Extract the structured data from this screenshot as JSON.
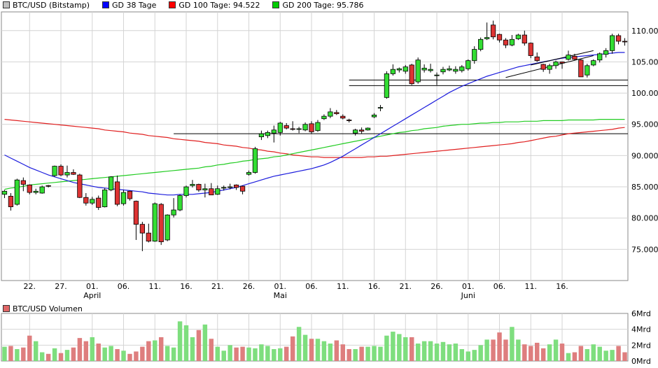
{
  "legend": {
    "items": [
      {
        "label": "BTC/USD (Bitstamp)",
        "color": "#bfbfbf"
      },
      {
        "label": "GD 38 Tage",
        "color": "#0000ff"
      },
      {
        "label": "GD 100 Tage: 94.522",
        "color": "#ff0000"
      },
      {
        "label": "GD 200 Tage: 95.786",
        "color": "#00cc00"
      }
    ]
  },
  "volume_legend": {
    "label": "BTC/USD Volumen",
    "color": "#e06666"
  },
  "chart_data": [
    {
      "type": "candlestick",
      "title": "",
      "ylim": [
        70000,
        113000
      ],
      "y_ticks": [
        75000,
        80000,
        85000,
        90000,
        95000,
        100000,
        105000,
        110000
      ],
      "y_tick_labels": [
        "75.000",
        "80.000",
        "85.000",
        "90.000",
        "95.000",
        "100.000",
        "105.000",
        "110.000"
      ],
      "x_ticks": [
        {
          "day": 4,
          "label": "22."
        },
        {
          "day": 9,
          "label": "27."
        },
        {
          "day": 14,
          "label": "01."
        },
        {
          "day": 19,
          "label": "06."
        },
        {
          "day": 24,
          "label": "11."
        },
        {
          "day": 29,
          "label": "16."
        },
        {
          "day": 34,
          "label": "21."
        },
        {
          "day": 39,
          "label": "26."
        },
        {
          "day": 44,
          "label": "01."
        },
        {
          "day": 49,
          "label": "06."
        },
        {
          "day": 54,
          "label": "11."
        },
        {
          "day": 59,
          "label": "16."
        },
        {
          "day": 64,
          "label": "21."
        },
        {
          "day": 69,
          "label": "26."
        },
        {
          "day": 74,
          "label": "01."
        },
        {
          "day": 79,
          "label": "06."
        },
        {
          "day": 84,
          "label": "11."
        },
        {
          "day": 89,
          "label": "16."
        }
      ],
      "month_labels": [
        {
          "day": 14,
          "label": "April"
        },
        {
          "day": 44,
          "label": "Mai"
        },
        {
          "day": 74,
          "label": "Juni"
        }
      ],
      "ohlc": [
        [
          83800,
          84500,
          83200,
          84300
        ],
        [
          83500,
          84000,
          81200,
          81800
        ],
        [
          82200,
          86300,
          82000,
          86100
        ],
        [
          86000,
          86500,
          84300,
          85400
        ],
        [
          85300,
          85400,
          83800,
          84100
        ],
        [
          84100,
          84700,
          83800,
          84300
        ],
        [
          84000,
          85200,
          83900,
          85000
        ],
        [
          85200,
          85300,
          84900,
          85100
        ],
        [
          86800,
          88400,
          86600,
          88300
        ],
        [
          88300,
          88600,
          86700,
          86900
        ],
        [
          86900,
          88400,
          86500,
          87300
        ],
        [
          87300,
          87800,
          86900,
          87000
        ],
        [
          86900,
          87100,
          83200,
          83300
        ],
        [
          83300,
          84000,
          82000,
          82400
        ],
        [
          82400,
          83400,
          82100,
          83000
        ],
        [
          83200,
          83600,
          81300,
          81700
        ],
        [
          81800,
          84800,
          81700,
          84500
        ],
        [
          84500,
          86700,
          84300,
          86600
        ],
        [
          85800,
          86800,
          81900,
          82200
        ],
        [
          82300,
          84500,
          82000,
          84100
        ],
        [
          84300,
          84400,
          82800,
          83100
        ],
        [
          82700,
          82800,
          76500,
          79000
        ],
        [
          79000,
          79400,
          74700,
          77600
        ],
        [
          77600,
          79100,
          76100,
          76300
        ],
        [
          76300,
          82500,
          76200,
          82300
        ],
        [
          82200,
          82400,
          75700,
          76200
        ],
        [
          76500,
          80600,
          76300,
          80500
        ],
        [
          80500,
          83200,
          80100,
          81300
        ],
        [
          81300,
          83800,
          81100,
          83600
        ],
        [
          83600,
          85200,
          83300,
          85000
        ],
        [
          85200,
          86100,
          84900,
          85400
        ],
        [
          85400,
          85500,
          84200,
          84500
        ],
        [
          84500,
          85500,
          83300,
          84700
        ],
        [
          84700,
          85600,
          83700,
          83700
        ],
        [
          83800,
          85200,
          83700,
          84700
        ],
        [
          84800,
          85200,
          84400,
          84900
        ],
        [
          84900,
          85500,
          84600,
          85000
        ],
        [
          85300,
          85400,
          84500,
          84900
        ],
        [
          85100,
          85200,
          83800,
          84300
        ],
        [
          87000,
          87600,
          86800,
          87300
        ],
        [
          87300,
          91400,
          87100,
          91100
        ],
        [
          93000,
          94000,
          92500,
          93500
        ],
        [
          93200,
          94000,
          92800,
          93700
        ],
        [
          93600,
          94800,
          92100,
          94100
        ],
        [
          93700,
          95400,
          93200,
          95200
        ],
        [
          94800,
          95200,
          94200,
          94400
        ],
        [
          94300,
          95500,
          94000,
          94200
        ],
        [
          94200,
          94600,
          93600,
          94300
        ],
        [
          94100,
          95300,
          93900,
          95000
        ],
        [
          95100,
          95500,
          93500,
          93800
        ],
        [
          94000,
          95700,
          93800,
          95300
        ],
        [
          95900,
          96600,
          95700,
          96300
        ],
        [
          96300,
          97600,
          96000,
          97000
        ],
        [
          96900,
          97300,
          96500,
          96700
        ],
        [
          96300,
          96600,
          95800,
          96000
        ],
        [
          95700,
          95900,
          95300,
          95600
        ],
        [
          93600,
          94300,
          93200,
          94100
        ],
        [
          94100,
          94500,
          93500,
          93900
        ],
        [
          94100,
          94500,
          94000,
          94400
        ],
        [
          96200,
          96800,
          96000,
          96500
        ],
        [
          97600,
          98100,
          97100,
          97700
        ],
        [
          99300,
          103500,
          99100,
          103100
        ],
        [
          103100,
          104600,
          102800,
          103800
        ],
        [
          103700,
          104100,
          103300,
          103900
        ],
        [
          103500,
          104500,
          103100,
          104200
        ],
        [
          104500,
          104700,
          101300,
          101500
        ],
        [
          101800,
          105700,
          101500,
          105300
        ],
        [
          103700,
          104600,
          103300,
          104000
        ],
        [
          103600,
          104700,
          103300,
          103800
        ],
        [
          102800,
          103300,
          101300,
          102900
        ],
        [
          103400,
          104200,
          103000,
          103800
        ],
        [
          103700,
          104400,
          103500,
          103900
        ],
        [
          103500,
          104300,
          103100,
          103800
        ],
        [
          103600,
          104500,
          103300,
          104200
        ],
        [
          103900,
          105400,
          103600,
          105200
        ],
        [
          105200,
          107500,
          104700,
          107000
        ],
        [
          107000,
          108900,
          106700,
          108600
        ],
        [
          108700,
          111300,
          108500,
          108900
        ],
        [
          110900,
          111600,
          108600,
          109000
        ],
        [
          109400,
          109500,
          108100,
          108500
        ],
        [
          108500,
          108800,
          107200,
          107700
        ],
        [
          107700,
          109300,
          107500,
          108600
        ],
        [
          108700,
          109500,
          108500,
          109300
        ],
        [
          109300,
          110000,
          107600,
          108000
        ],
        [
          108000,
          108100,
          105600,
          106000
        ],
        [
          105800,
          106500,
          105000,
          105200
        ],
        [
          104600,
          104700,
          103400,
          103800
        ],
        [
          103800,
          104700,
          103100,
          104400
        ],
        [
          104400,
          105200,
          103900,
          105000
        ],
        [
          105000,
          105000,
          103900,
          104800
        ],
        [
          105400,
          106800,
          105200,
          106100
        ],
        [
          105900,
          106300,
          105200,
          105400
        ],
        [
          105300,
          105500,
          102700,
          102600
        ],
        [
          102900,
          104700,
          102500,
          104400
        ],
        [
          104500,
          105400,
          104300,
          105200
        ],
        [
          105300,
          106500,
          104900,
          106300
        ],
        [
          106200,
          107200,
          105700,
          106800
        ],
        [
          106800,
          109500,
          106300,
          109200
        ],
        [
          109200,
          109500,
          107800,
          108300
        ],
        [
          108300,
          108800,
          107600,
          108200
        ]
      ],
      "ma38": [
        90100,
        89600,
        89100,
        88600,
        88100,
        87700,
        87300,
        86900,
        86600,
        86300,
        86000,
        85700,
        85500,
        85300,
        85100,
        84900,
        84800,
        84700,
        84600,
        84500,
        84400,
        84300,
        84200,
        84000,
        83900,
        83800,
        83700,
        83700,
        83800,
        83800,
        83800,
        83900,
        84000,
        84100,
        84300,
        84500,
        84700,
        84900,
        85200,
        85500,
        85800,
        86100,
        86400,
        86700,
        86900,
        87100,
        87300,
        87500,
        87700,
        87900,
        88200,
        88500,
        88900,
        89400,
        89900,
        90500,
        91100,
        91700,
        92300,
        92900,
        93500,
        94100,
        94700,
        95300,
        95900,
        96500,
        97100,
        97700,
        98300,
        98900,
        99500,
        100100,
        100600,
        101100,
        101500,
        101900,
        102300,
        102700,
        103000,
        103300,
        103600,
        103900,
        104200,
        104400,
        104600,
        104800,
        105000,
        105200,
        105400,
        105600,
        105700,
        105800,
        105900,
        106000,
        106100,
        106200,
        106300,
        106400,
        106500,
        106500
      ],
      "ma100": [
        95800,
        95700,
        95600,
        95500,
        95400,
        95300,
        95200,
        95100,
        95000,
        94900,
        94800,
        94700,
        94600,
        94500,
        94400,
        94300,
        94100,
        94000,
        93900,
        93800,
        93600,
        93500,
        93400,
        93200,
        93100,
        93000,
        92900,
        92700,
        92600,
        92500,
        92400,
        92300,
        92100,
        92000,
        91900,
        91700,
        91600,
        91500,
        91300,
        91200,
        91000,
        90900,
        90700,
        90600,
        90400,
        90300,
        90100,
        90000,
        89900,
        89800,
        89800,
        89700,
        89700,
        89700,
        89700,
        89700,
        89700,
        89700,
        89800,
        89800,
        89900,
        89900,
        90000,
        90100,
        90200,
        90300,
        90400,
        90500,
        90600,
        90700,
        90800,
        90900,
        91000,
        91100,
        91200,
        91300,
        91400,
        91500,
        91600,
        91700,
        91800,
        91900,
        92100,
        92200,
        92400,
        92600,
        92800,
        93000,
        93100,
        93300,
        93500,
        93600,
        93700,
        93800,
        93900,
        94000,
        94100,
        94200,
        94400,
        94500
      ],
      "ma200": [
        84600,
        84800,
        84900,
        85100,
        85300,
        85400,
        85500,
        85600,
        85700,
        85800,
        85900,
        86000,
        86100,
        86200,
        86300,
        86400,
        86500,
        86600,
        86700,
        86800,
        86900,
        87000,
        87100,
        87200,
        87300,
        87400,
        87500,
        87600,
        87700,
        87800,
        87900,
        88000,
        88200,
        88300,
        88500,
        88600,
        88800,
        88900,
        89100,
        89200,
        89400,
        89500,
        89600,
        89800,
        89900,
        90100,
        90300,
        90500,
        90700,
        90900,
        91100,
        91300,
        91500,
        91700,
        91900,
        92100,
        92300,
        92500,
        92700,
        92900,
        93100,
        93300,
        93500,
        93700,
        93800,
        94000,
        94100,
        94300,
        94400,
        94500,
        94700,
        94800,
        94900,
        95000,
        95000,
        95100,
        95200,
        95200,
        95300,
        95300,
        95400,
        95400,
        95400,
        95500,
        95500,
        95500,
        95600,
        95600,
        95600,
        95600,
        95700,
        95700,
        95700,
        95700,
        95700,
        95800,
        95800,
        95800,
        95800,
        95800
      ],
      "horizontal_lines": [
        93500,
        101200,
        102100
      ],
      "trend_lines": [
        {
          "from": [
            80,
            102500
          ],
          "to": [
            94,
            106000
          ]
        },
        {
          "from": [
            84,
            104500
          ],
          "to": [
            94,
            106800
          ]
        }
      ]
    },
    {
      "type": "bar",
      "title": "BTC/USD Volumen",
      "unit": "Mrd",
      "ylim": [
        0,
        6
      ],
      "y_ticks": [
        0,
        2,
        4,
        6
      ],
      "y_tick_labels": [
        "0Mrd",
        "2Mrd",
        "4Mrd",
        "6Mrd"
      ],
      "values": [
        1.8,
        1.9,
        1.5,
        1.7,
        3.2,
        2.5,
        1.1,
        0.9,
        1.6,
        1.0,
        1.4,
        1.7,
        2.9,
        2.5,
        3.0,
        2.2,
        1.7,
        1.9,
        1.5,
        1.3,
        0.9,
        1.2,
        1.8,
        2.5,
        2.6,
        3.0,
        1.9,
        1.7,
        5.0,
        4.5,
        3.0,
        3.9,
        4.6,
        2.8,
        1.8,
        1.3,
        2.0,
        1.7,
        1.8,
        1.7,
        1.6,
        2.1,
        1.9,
        1.5,
        1.6,
        1.8,
        3.1,
        4.3,
        3.3,
        2.8,
        2.8,
        2.5,
        2.2,
        2.6,
        2.1,
        1.5,
        1.5,
        1.8,
        1.8,
        1.9,
        1.8,
        3.2,
        3.7,
        3.4,
        3.0,
        3.0,
        2.2,
        2.5,
        2.5,
        2.2,
        2.4,
        2.1,
        2.2,
        1.5,
        1.2,
        1.4,
        2.0,
        2.7,
        2.7,
        3.6,
        2.7,
        4.3,
        2.7,
        2.1,
        1.9,
        2.3,
        1.6,
        2.1,
        2.7,
        2.2,
        1.0,
        1.1,
        1.9,
        1.5,
        2.1,
        1.8,
        1.3,
        1.4,
        1.9,
        1.1
      ],
      "bar_colors_follow_candles": true
    }
  ],
  "colors": {
    "up": "#33dd33",
    "down": "#dd3333",
    "ma38": "#1c1cdd",
    "ma100": "#e02020",
    "ma200": "#22cc22",
    "grid": "#d4d4d4",
    "vol_up": "#7ede7e",
    "vol_down": "#de7e7e"
  }
}
